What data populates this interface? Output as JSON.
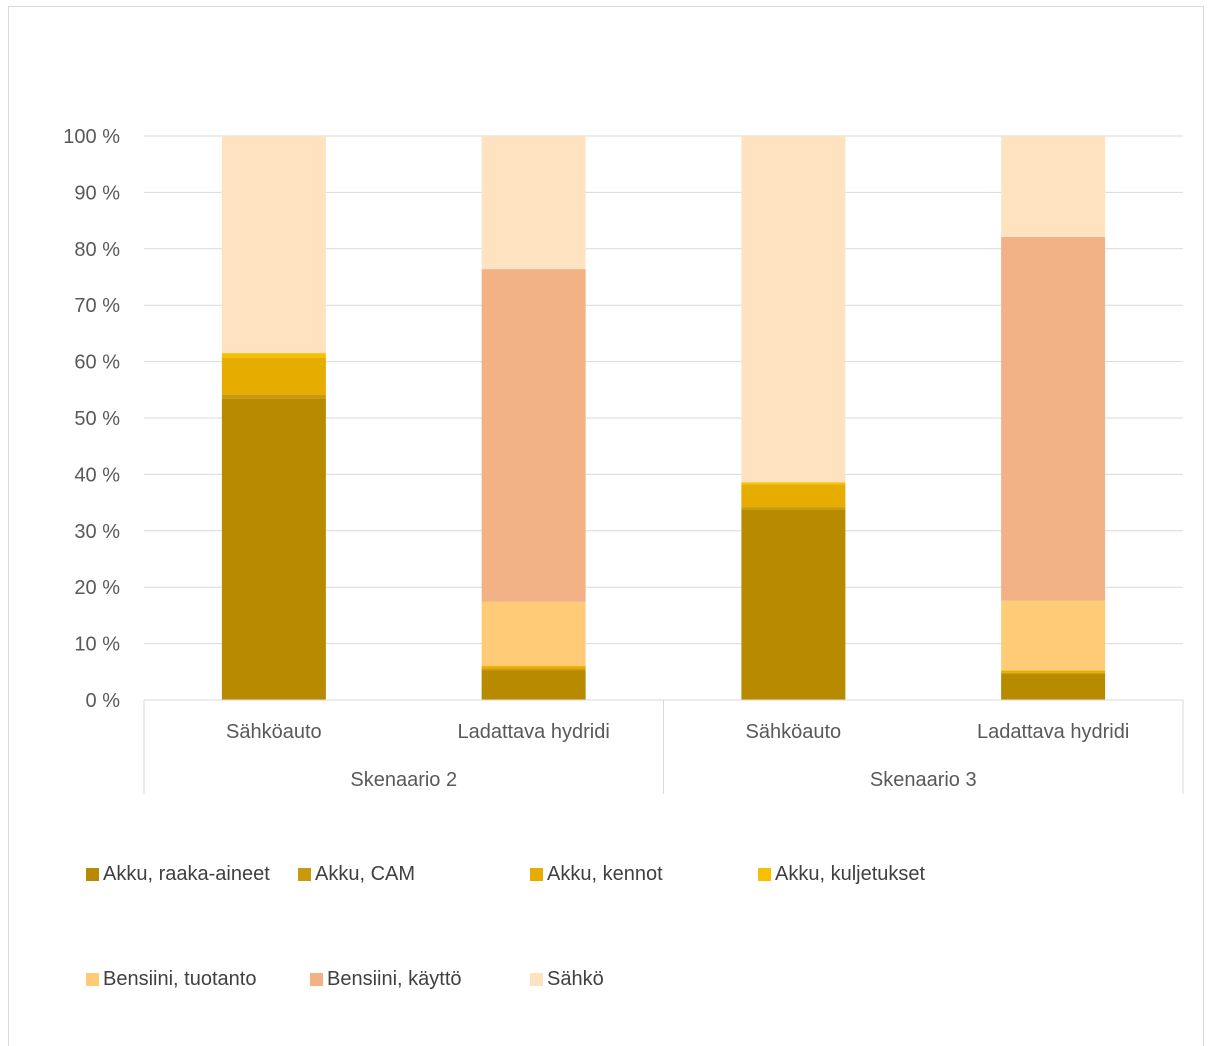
{
  "chart_data": {
    "type": "bar",
    "stacked": true,
    "percent": true,
    "title": "",
    "xlabel": "",
    "ylabel": "",
    "ylim": [
      0,
      100
    ],
    "yticks": [
      "0 %",
      "10 %",
      "20 %",
      "30 %",
      "40 %",
      "50 %",
      "60 %",
      "70 %",
      "80 %",
      "90 %",
      "100 %"
    ],
    "grid": true,
    "legend_position": "bottom",
    "groups": [
      {
        "label": "Skenaario 2",
        "categories": [
          "Sähköauto",
          "Ladattava hydridi"
        ]
      },
      {
        "label": "Skenaario 3",
        "categories": [
          "Sähköauto",
          "Ladattava hydridi"
        ]
      }
    ],
    "categories": [
      "Sähköauto",
      "Ladattava hydridi",
      "Sähköauto",
      "Ladattava hydridi"
    ],
    "series": [
      {
        "name": "Akku, raaka-aineet",
        "color": "#b88a00",
        "values": [
          53.5,
          5.3,
          33.8,
          4.6
        ]
      },
      {
        "name": "Akku, CAM",
        "color": "#c99a0b",
        "values": [
          0.7,
          0.2,
          0.4,
          0.2
        ]
      },
      {
        "name": "Akku, kennot",
        "color": "#e6ad00",
        "values": [
          6.5,
          0.5,
          4.0,
          0.4
        ]
      },
      {
        "name": "Akku, kuljetukset",
        "color": "#f5c000",
        "values": [
          0.8,
          0.1,
          0.4,
          0.1
        ]
      },
      {
        "name": "Bensiini, tuotanto",
        "color": "#ffcb76",
        "values": [
          0,
          11.3,
          0,
          12.3
        ]
      },
      {
        "name": "Bensiini, käyttö",
        "color": "#f3b186",
        "values": [
          0,
          59.0,
          0,
          64.5
        ]
      },
      {
        "name": "Sähkö",
        "color": "#ffe3c0",
        "values": [
          38.5,
          23.6,
          61.4,
          17.9
        ]
      }
    ]
  }
}
